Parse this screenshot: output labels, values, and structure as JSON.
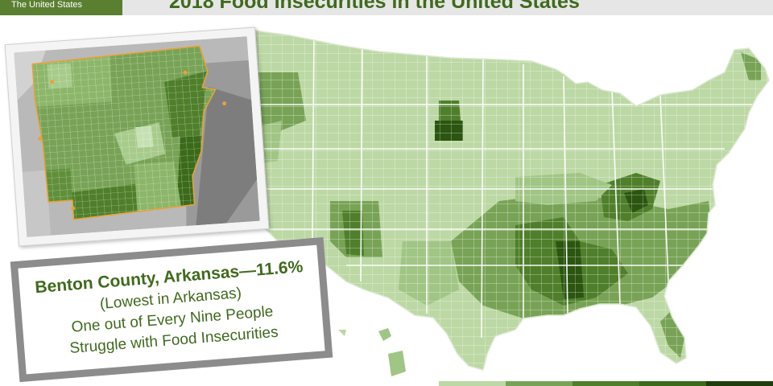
{
  "header": {
    "badge_text": "The United States",
    "title": "2018 Food Insecurities in the United States"
  },
  "callout": {
    "line1": "Benton County, Arkansas—11.6%",
    "line2": "(Lowest in Arkansas)",
    "line3": "One out of Every Nine People",
    "line4": "Struggle with Food Insecurities"
  },
  "colors": {
    "lightest": "#bcd8a4",
    "light": "#a0c585",
    "medium": "#78a356",
    "dark": "#4f7f2b",
    "darkest": "#2b5510",
    "accent": "#3f6a1c",
    "inset_border": "#e8a23b"
  },
  "legend_colors": [
    "#bcd8a4",
    "#78a356",
    "#4f7f2b",
    "#3a6a1a",
    "#1f3d0c"
  ]
}
